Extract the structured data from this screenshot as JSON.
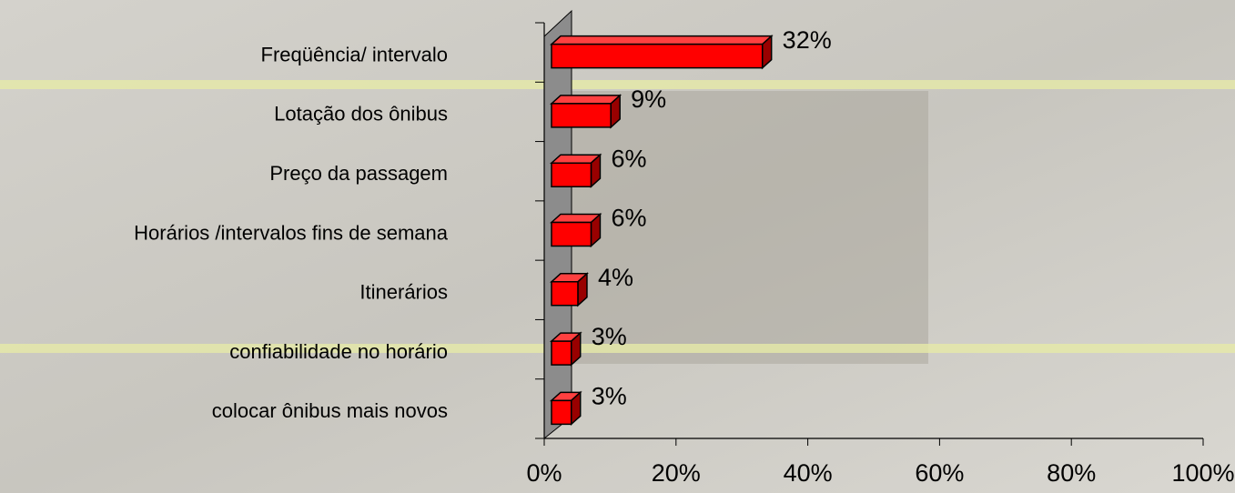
{
  "chart_data": {
    "type": "bar3d",
    "categories": [
      "Freqüência/ intervalo",
      "Lotação dos ônibus",
      "Preço da passagem",
      "Horários /intervalos fins de semana",
      "Itinerários",
      "confiabilidade no horário",
      "colocar ônibus mais novos"
    ],
    "values": [
      32,
      9,
      6,
      6,
      4,
      3,
      3
    ],
    "value_labels": [
      "32%",
      "9%",
      "6%",
      "6%",
      "4%",
      "3%",
      "3%"
    ],
    "color": "#ff0000",
    "xlim": [
      0,
      100
    ],
    "xticks": [
      {
        "value": 0,
        "label": "0%"
      },
      {
        "value": 20,
        "label": "20%"
      },
      {
        "value": 40,
        "label": "40%"
      },
      {
        "value": 60,
        "label": "60%"
      },
      {
        "value": 80,
        "label": "80%"
      },
      {
        "value": 100,
        "label": "100%"
      }
    ]
  }
}
